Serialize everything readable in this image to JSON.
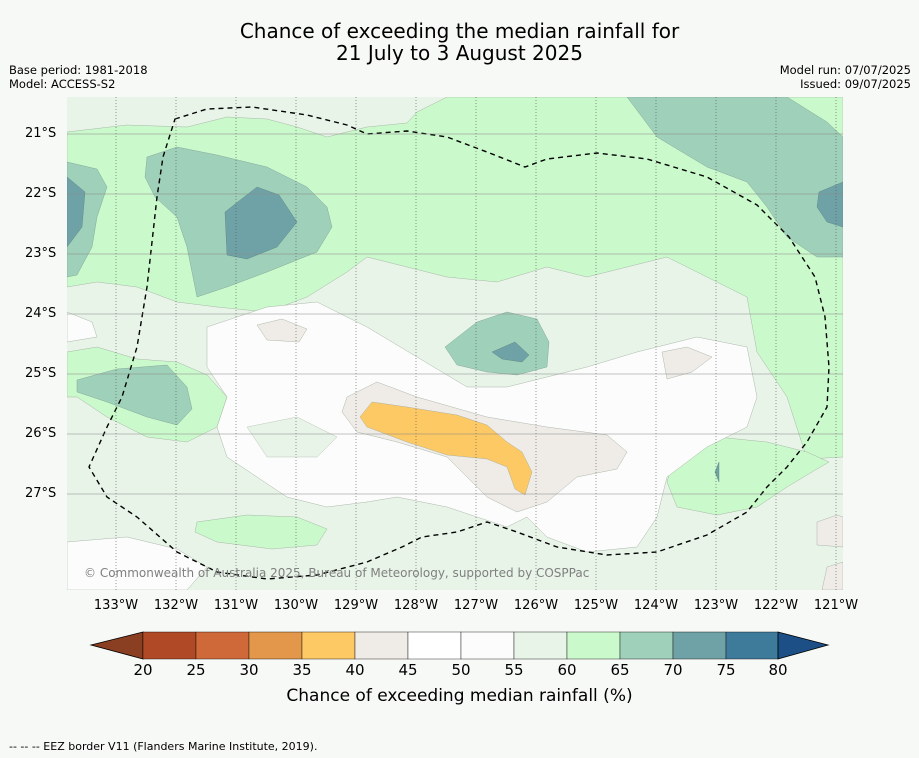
{
  "title": {
    "line1": "Chance of exceeding the median rainfall for",
    "line2": "21 July to 3 August 2025"
  },
  "meta": {
    "base_period": "Base period: 1981-2018",
    "model": "Model: ACCESS-S2",
    "model_run": "Model run: 07/07/2025",
    "issued": "Issued: 09/07/2025"
  },
  "map": {
    "lat_labels": [
      "21°S",
      "22°S",
      "23°S",
      "24°S",
      "25°S",
      "26°S",
      "27°S"
    ],
    "lon_labels": [
      "133°W",
      "132°W",
      "131°W",
      "130°W",
      "129°W",
      "128°W",
      "127°W",
      "126°W",
      "125°W",
      "124°W",
      "123°W",
      "122°W",
      "121°W"
    ],
    "copyright": "© Commonwealth of Australia 2025, Bureau of Meteorology, supported by COSPPac"
  },
  "colorbar": {
    "ticks": [
      "20",
      "25",
      "30",
      "35",
      "40",
      "45",
      "50",
      "55",
      "60",
      "65",
      "70",
      "75",
      "80"
    ],
    "label": "Chance of exceeding median rainfall (%)",
    "colors": {
      "below20": "#8a3f22",
      "20-25": "#b04a26",
      "25-30": "#d0693a",
      "30-35": "#e2974a",
      "35-40": "#fdc964",
      "40-45": "#efece7",
      "45-50": "#ffffff",
      "50-55": "#fbfcfb",
      "55-60": "#e8f4e8",
      "60-65": "#caf9cb",
      "65-70": "#9fd0b9",
      "70-75": "#6fa2a6",
      "75-80": "#3e7b9b",
      "above80": "#1c4f86"
    }
  },
  "footer": "--  --  -- EEZ border V11 (Flanders Marine Institute, 2019)."
}
